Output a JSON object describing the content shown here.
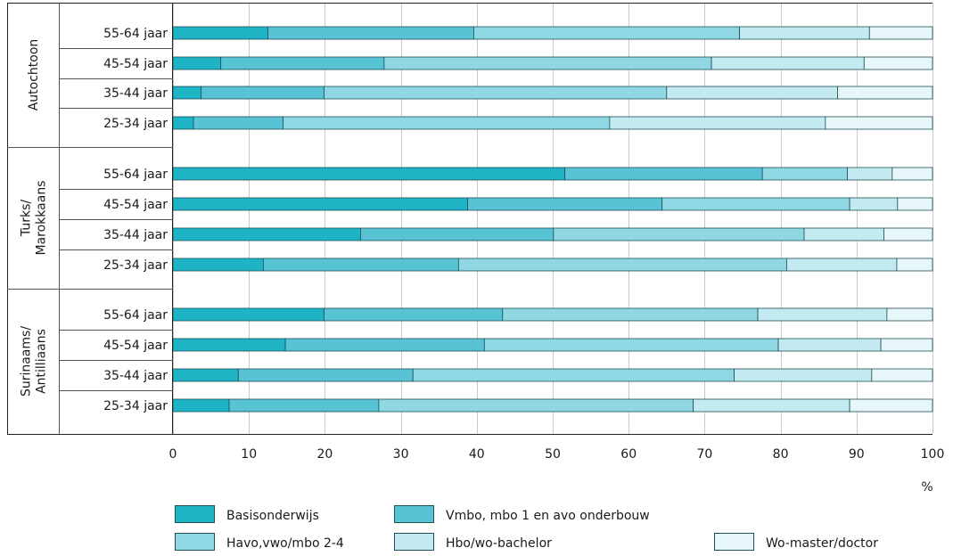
{
  "chart_data": {
    "type": "bar",
    "orientation": "horizontal",
    "stacked": true,
    "xlim": [
      0,
      100
    ],
    "x_ticks": [
      "0",
      "10",
      "20",
      "30",
      "40",
      "50",
      "60",
      "70",
      "80",
      "90",
      "100"
    ],
    "x_unit_label": "%",
    "grid": "vertical",
    "legend_position": "bottom",
    "groups": [
      {
        "label": "Autochtoon",
        "label_lines": [
          "Autochtoon"
        ]
      },
      {
        "label": "Turks/ Marokkaans",
        "label_lines": [
          "Turks/",
          "Marokkaans"
        ]
      },
      {
        "label": "Surinaams/ Antilliaans",
        "label_lines": [
          "Surinaams/",
          "Antilliaans"
        ]
      }
    ],
    "categories": [
      {
        "group": 0,
        "label": "55-64 jaar"
      },
      {
        "group": 0,
        "label": "45-54 jaar"
      },
      {
        "group": 0,
        "label": "35-44 jaar"
      },
      {
        "group": 0,
        "label": "25-34 jaar"
      },
      {
        "group": 1,
        "label": "55-64 jaar"
      },
      {
        "group": 1,
        "label": "45-54 jaar"
      },
      {
        "group": 1,
        "label": "35-44 jaar"
      },
      {
        "group": 1,
        "label": "25-34 jaar"
      },
      {
        "group": 2,
        "label": "55-64 jaar"
      },
      {
        "group": 2,
        "label": "45-54 jaar"
      },
      {
        "group": 2,
        "label": "35-44 jaar"
      },
      {
        "group": 2,
        "label": "25-34 jaar"
      }
    ],
    "series": [
      {
        "name": "Basisonderwijs",
        "color": "#1fb3c6",
        "values": [
          12.5,
          6.3,
          3.7,
          2.7,
          51.6,
          38.8,
          24.7,
          11.9,
          19.9,
          14.8,
          8.6,
          7.4
        ]
      },
      {
        "name": "Vmbo, mbo 1 en avo onderbouw",
        "color": "#57c3d4",
        "values": [
          27.1,
          21.5,
          16.2,
          11.8,
          26.0,
          25.6,
          25.4,
          25.7,
          23.5,
          26.2,
          23.0,
          19.7
        ]
      },
      {
        "name": "Havo,vwo/mbo 2-4",
        "color": "#8fd8e3",
        "values": [
          35.0,
          43.1,
          45.1,
          43.0,
          11.2,
          24.7,
          33.0,
          43.2,
          33.6,
          38.7,
          42.3,
          41.4
        ]
      },
      {
        "name": "Hbo/wo-bachelor",
        "color": "#c3eaf0",
        "values": [
          17.1,
          20.1,
          22.5,
          28.4,
          5.9,
          6.3,
          10.5,
          14.5,
          17.0,
          13.5,
          18.1,
          20.6
        ]
      },
      {
        "name": "Wo-master/doctor",
        "color": "#e6f6f9",
        "values": [
          8.3,
          9.0,
          12.5,
          14.1,
          5.3,
          4.6,
          6.4,
          4.7,
          6.0,
          6.8,
          8.0,
          10.9
        ]
      }
    ]
  }
}
